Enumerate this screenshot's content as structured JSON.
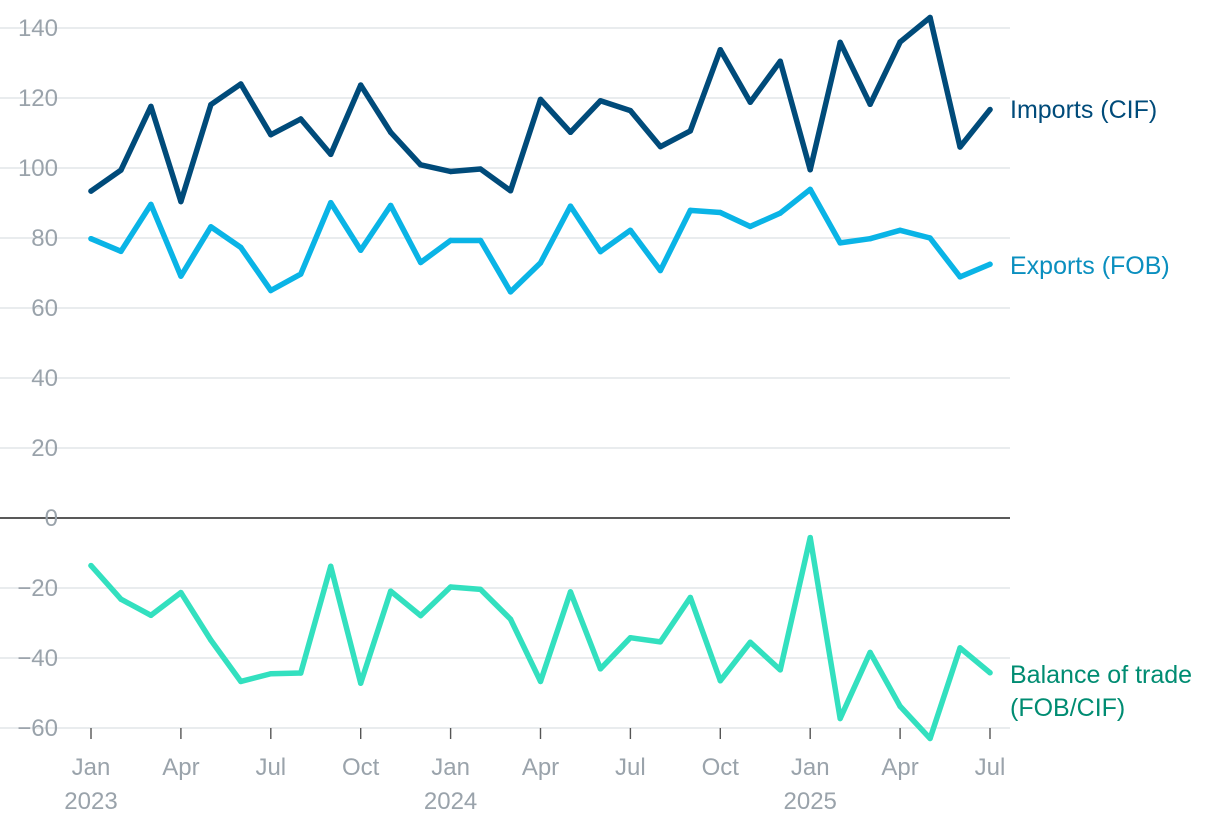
{
  "chart_data": {
    "type": "line",
    "title": "",
    "xlabel": "",
    "ylabel": "",
    "ylim": [
      -60,
      140
    ],
    "yticks": [
      140,
      120,
      100,
      80,
      60,
      40,
      20,
      0,
      -20,
      -40,
      -60
    ],
    "ytick_labels": [
      "140",
      "120",
      "100",
      "80",
      "60",
      "40",
      "20",
      "0",
      "−20",
      "−40",
      "−60"
    ],
    "x": [
      "2023-01",
      "2023-02",
      "2023-03",
      "2023-04",
      "2023-05",
      "2023-06",
      "2023-07",
      "2023-08",
      "2023-09",
      "2023-10",
      "2023-11",
      "2023-12",
      "2024-01",
      "2024-02",
      "2024-03",
      "2024-04",
      "2024-05",
      "2024-06",
      "2024-07",
      "2024-08",
      "2024-09",
      "2024-10",
      "2024-11",
      "2024-12",
      "2025-01",
      "2025-02",
      "2025-03",
      "2025-04",
      "2025-05",
      "2025-06",
      "2025-07"
    ],
    "xticks": [
      {
        "index": 0,
        "month": "Jan",
        "year": "2023"
      },
      {
        "index": 3,
        "month": "Apr",
        "year": ""
      },
      {
        "index": 6,
        "month": "Jul",
        "year": ""
      },
      {
        "index": 9,
        "month": "Oct",
        "year": ""
      },
      {
        "index": 12,
        "month": "Jan",
        "year": "2024"
      },
      {
        "index": 15,
        "month": "Apr",
        "year": ""
      },
      {
        "index": 18,
        "month": "Jul",
        "year": ""
      },
      {
        "index": 21,
        "month": "Oct",
        "year": ""
      },
      {
        "index": 24,
        "month": "Jan",
        "year": "2025"
      },
      {
        "index": 27,
        "month": "Apr",
        "year": ""
      },
      {
        "index": 30,
        "month": "Jul",
        "year": ""
      }
    ],
    "series": [
      {
        "name": "Imports (CIF)",
        "label_lines": [
          "Imports (CIF)"
        ],
        "color": "#004b7a",
        "label_color": "#004b7a",
        "values": [
          93.4,
          99.4,
          117.6,
          90.4,
          118.1,
          124.0,
          109.5,
          114.0,
          103.9,
          123.7,
          110.2,
          100.9,
          99.0,
          99.7,
          93.5,
          119.6,
          110.2,
          119.2,
          116.4,
          106.1,
          110.6,
          133.8,
          118.8,
          130.5,
          99.5,
          135.9,
          118.2,
          136.0,
          143.0,
          106.0,
          116.7
        ]
      },
      {
        "name": "Exports (FOB)",
        "label_lines": [
          "Exports (FOB)"
        ],
        "color": "#0ab4e6",
        "label_color": "#0a8fbf",
        "values": [
          79.8,
          76.2,
          89.6,
          69.1,
          83.2,
          77.3,
          65.0,
          69.7,
          90.1,
          76.5,
          89.3,
          73.0,
          79.3,
          79.3,
          64.6,
          72.9,
          89.1,
          76.1,
          82.2,
          70.7,
          87.9,
          87.3,
          83.3,
          87.1,
          93.9,
          78.6,
          79.8,
          82.2,
          80.0,
          68.9,
          72.5
        ]
      },
      {
        "name": "Balance of trade (FOB/CIF)",
        "label_lines": [
          "Balance of trade",
          "(FOB/CIF)"
        ],
        "color": "#33e0bf",
        "label_color": "#008c72",
        "values": [
          -13.6,
          -23.2,
          -27.8,
          -21.3,
          -34.9,
          -46.7,
          -44.5,
          -44.3,
          -13.8,
          -47.2,
          -20.9,
          -27.9,
          -19.7,
          -20.4,
          -28.9,
          -46.7,
          -21.1,
          -43.1,
          -34.2,
          -35.4,
          -22.7,
          -46.5,
          -35.5,
          -43.4,
          -5.6,
          -57.3,
          -38.4,
          -53.8,
          -63.0,
          -37.1,
          -44.2
        ]
      }
    ],
    "zero_line": true,
    "grid": true,
    "legend": "inline-right"
  }
}
